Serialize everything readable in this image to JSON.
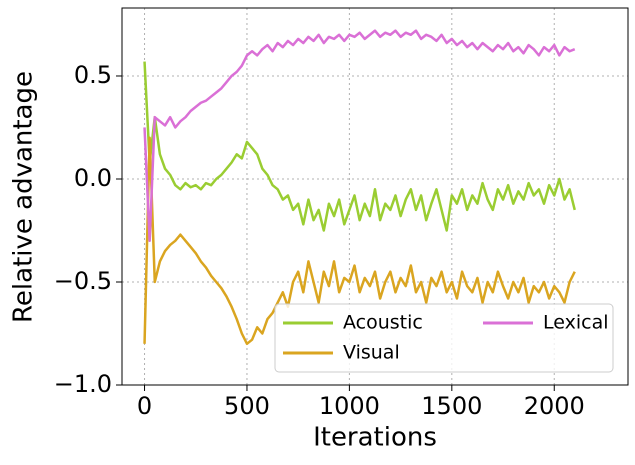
{
  "chart_data": {
    "type": "line",
    "x_label": "Iterations",
    "y_label": "Relative advantage",
    "x": [
      0,
      25,
      50,
      75,
      100,
      125,
      150,
      175,
      200,
      225,
      250,
      275,
      300,
      325,
      350,
      375,
      400,
      425,
      450,
      475,
      500,
      525,
      550,
      575,
      600,
      625,
      650,
      675,
      700,
      725,
      750,
      775,
      800,
      825,
      850,
      875,
      900,
      925,
      950,
      975,
      1000,
      1025,
      1050,
      1075,
      1100,
      1125,
      1150,
      1175,
      1200,
      1225,
      1250,
      1275,
      1300,
      1325,
      1350,
      1375,
      1400,
      1425,
      1450,
      1475,
      1500,
      1525,
      1550,
      1575,
      1600,
      1625,
      1650,
      1675,
      1700,
      1725,
      1750,
      1775,
      1800,
      1825,
      1850,
      1875,
      1900,
      1925,
      1950,
      1975,
      2000,
      2025,
      2050,
      2075,
      2100
    ],
    "series": [
      {
        "name": "Acoustic",
        "color": "#9acd32",
        "values": [
          0.57,
          0.08,
          0.3,
          0.12,
          0.05,
          0.02,
          -0.03,
          -0.05,
          -0.02,
          -0.04,
          -0.03,
          -0.05,
          -0.02,
          -0.03,
          0.0,
          0.02,
          0.05,
          0.08,
          0.12,
          0.1,
          0.18,
          0.15,
          0.12,
          0.05,
          0.02,
          -0.03,
          -0.05,
          -0.1,
          -0.08,
          -0.15,
          -0.12,
          -0.22,
          -0.1,
          -0.2,
          -0.15,
          -0.25,
          -0.12,
          -0.18,
          -0.1,
          -0.22,
          -0.15,
          -0.08,
          -0.2,
          -0.12,
          -0.18,
          -0.05,
          -0.2,
          -0.12,
          -0.15,
          -0.08,
          -0.18,
          -0.1,
          -0.05,
          -0.15,
          -0.08,
          -0.2,
          -0.12,
          -0.05,
          -0.15,
          -0.25,
          -0.08,
          -0.12,
          -0.05,
          -0.15,
          -0.08,
          -0.12,
          -0.02,
          -0.1,
          -0.15,
          -0.05,
          -0.1,
          -0.03,
          -0.12,
          -0.06,
          -0.1,
          -0.02,
          -0.08,
          -0.05,
          -0.12,
          -0.03,
          -0.08,
          0.0,
          -0.1,
          -0.05,
          -0.15
        ]
      },
      {
        "name": "Visual",
        "color": "#daa520",
        "values": [
          -0.8,
          0.2,
          -0.5,
          -0.4,
          -0.35,
          -0.32,
          -0.3,
          -0.27,
          -0.3,
          -0.33,
          -0.36,
          -0.4,
          -0.43,
          -0.47,
          -0.5,
          -0.53,
          -0.57,
          -0.62,
          -0.68,
          -0.75,
          -0.8,
          -0.78,
          -0.72,
          -0.75,
          -0.68,
          -0.65,
          -0.6,
          -0.55,
          -0.62,
          -0.5,
          -0.45,
          -0.55,
          -0.4,
          -0.5,
          -0.6,
          -0.45,
          -0.52,
          -0.4,
          -0.55,
          -0.48,
          -0.5,
          -0.42,
          -0.55,
          -0.48,
          -0.52,
          -0.45,
          -0.58,
          -0.5,
          -0.45,
          -0.55,
          -0.48,
          -0.52,
          -0.42,
          -0.55,
          -0.5,
          -0.6,
          -0.48,
          -0.52,
          -0.45,
          -0.55,
          -0.5,
          -0.58,
          -0.45,
          -0.52,
          -0.55,
          -0.48,
          -0.6,
          -0.5,
          -0.55,
          -0.45,
          -0.52,
          -0.58,
          -0.5,
          -0.55,
          -0.48,
          -0.6,
          -0.52,
          -0.55,
          -0.5,
          -0.58,
          -0.52,
          -0.55,
          -0.6,
          -0.5,
          -0.45
        ]
      },
      {
        "name": "Lexical",
        "color": "#da70d6",
        "values": [
          0.25,
          -0.3,
          0.3,
          0.28,
          0.26,
          0.3,
          0.25,
          0.28,
          0.3,
          0.33,
          0.35,
          0.37,
          0.38,
          0.4,
          0.42,
          0.44,
          0.47,
          0.5,
          0.52,
          0.55,
          0.6,
          0.62,
          0.6,
          0.63,
          0.65,
          0.62,
          0.66,
          0.64,
          0.67,
          0.65,
          0.68,
          0.66,
          0.69,
          0.67,
          0.7,
          0.66,
          0.69,
          0.68,
          0.7,
          0.67,
          0.7,
          0.69,
          0.71,
          0.68,
          0.7,
          0.72,
          0.69,
          0.71,
          0.7,
          0.72,
          0.69,
          0.71,
          0.7,
          0.72,
          0.68,
          0.7,
          0.69,
          0.67,
          0.7,
          0.66,
          0.68,
          0.65,
          0.67,
          0.64,
          0.66,
          0.63,
          0.66,
          0.64,
          0.62,
          0.65,
          0.63,
          0.66,
          0.62,
          0.64,
          0.61,
          0.65,
          0.63,
          0.6,
          0.64,
          0.62,
          0.65,
          0.6,
          0.64,
          0.62,
          0.63
        ]
      }
    ],
    "xlim": [
      -110,
      2360
    ],
    "ylim": [
      -1.0,
      0.83
    ],
    "xticks": [
      0,
      500,
      1000,
      1500,
      2000
    ],
    "yticks": [
      {
        "value": -1.0,
        "label": "−1.0"
      },
      {
        "value": -0.5,
        "label": "−0.5"
      },
      {
        "value": 0.0,
        "label": "0.0"
      },
      0.5
    ],
    "grid": true,
    "legend_loc": "lower right"
  }
}
